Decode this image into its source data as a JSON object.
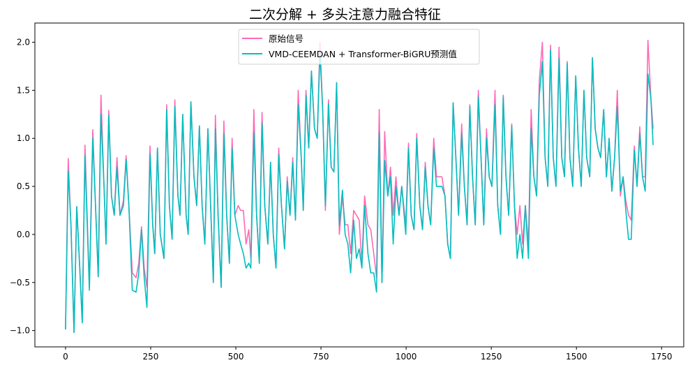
{
  "chart_data": {
    "type": "line",
    "title": "二次分解 + 多头注意力融合特征",
    "xlabel": "",
    "ylabel": "",
    "xlim": [
      -90,
      1815
    ],
    "ylim": [
      -1.17,
      2.2
    ],
    "xticks": [
      0,
      250,
      500,
      750,
      1000,
      1250,
      1500,
      1750
    ],
    "yticks": [
      -1.0,
      -0.5,
      0.0,
      0.5,
      1.0,
      1.5,
      2.0
    ],
    "xtick_labels": [
      "0",
      "250",
      "500",
      "750",
      "1000",
      "1250",
      "1500",
      "1750"
    ],
    "ytick_labels": [
      "−1.0",
      "−0.5",
      "0.0",
      "0.5",
      "1.0",
      "1.5",
      "2.0"
    ],
    "grid": false,
    "legend_position": "top-center",
    "x": [
      0,
      8,
      16,
      25,
      33,
      41,
      49,
      57,
      70,
      80,
      88,
      96,
      104,
      113,
      119,
      127,
      135,
      143,
      151,
      160,
      170,
      178,
      186,
      196,
      207,
      215,
      223,
      231,
      239,
      248,
      256,
      262,
      270,
      278,
      289,
      297,
      305,
      313,
      321,
      330,
      336,
      344,
      354,
      360,
      368,
      377,
      385,
      393,
      401,
      409,
      418,
      426,
      434,
      440,
      448,
      457,
      465,
      473,
      481,
      489,
      497,
      507,
      514,
      522,
      530,
      538,
      544,
      553,
      561,
      569,
      577,
      585,
      594,
      602,
      610,
      618,
      626,
      634,
      643,
      651,
      659,
      667,
      675,
      683,
      692,
      698,
      706,
      714,
      722,
      731,
      739,
      747,
      755,
      763,
      772,
      780,
      788,
      796,
      804,
      813,
      821,
      829,
      837,
      846,
      854,
      862,
      870,
      878,
      888,
      896,
      905,
      913,
      921,
      929,
      937,
      946,
      954,
      962,
      970,
      979,
      987,
      999,
      1007,
      1015,
      1023,
      1031,
      1040,
      1048,
      1056,
      1064,
      1072,
      1081,
      1089,
      1097,
      1105,
      1114,
      1122,
      1130,
      1138,
      1146,
      1154,
      1163,
      1171,
      1179,
      1187,
      1195,
      1203,
      1212,
      1220,
      1228,
      1236,
      1244,
      1252,
      1261,
      1269,
      1277,
      1285,
      1293,
      1301,
      1310,
      1318,
      1326,
      1334,
      1342,
      1350,
      1359,
      1367,
      1375,
      1383,
      1391,
      1400,
      1408,
      1416,
      1424,
      1432,
      1440,
      1449,
      1457,
      1465,
      1473,
      1481,
      1489,
      1498,
      1506,
      1514,
      1522,
      1530,
      1539,
      1547,
      1555,
      1563,
      1571,
      1580,
      1588,
      1596,
      1604,
      1612,
      1620,
      1629,
      1637,
      1645,
      1653,
      1661,
      1670,
      1678,
      1686,
      1694,
      1702,
      1710,
      1719,
      1725
    ],
    "series": [
      {
        "name": "原始信号",
        "color": "#ff69b4",
        "values": [
          -0.98,
          0.79,
          0.1,
          -1.02,
          0.29,
          -0.3,
          -0.9,
          0.93,
          -0.55,
          1.09,
          0.3,
          -0.44,
          1.45,
          0.5,
          -0.1,
          1.29,
          0.4,
          0.2,
          0.8,
          0.2,
          0.35,
          0.82,
          0.3,
          -0.4,
          -0.45,
          -0.3,
          0.08,
          -0.35,
          -0.55,
          0.92,
          0.1,
          -0.2,
          0.9,
          0.0,
          -0.25,
          1.35,
          0.3,
          -0.05,
          1.4,
          0.4,
          0.2,
          1.25,
          0.2,
          0.0,
          1.38,
          0.6,
          0.3,
          1.13,
          0.3,
          -0.1,
          1.1,
          0.3,
          -0.5,
          1.24,
          0.2,
          -0.55,
          1.18,
          0.2,
          -0.3,
          1.0,
          0.2,
          0.3,
          0.25,
          0.25,
          -0.1,
          0.05,
          -0.25,
          1.3,
          0.2,
          -0.3,
          1.27,
          0.3,
          -0.1,
          0.75,
          0.0,
          -0.35,
          0.9,
          0.3,
          -0.15,
          0.6,
          0.2,
          0.8,
          0.15,
          1.5,
          0.8,
          0.25,
          1.5,
          0.9,
          1.7,
          1.1,
          1.0,
          2.0,
          1.3,
          0.25,
          1.4,
          0.7,
          0.65,
          1.58,
          0.0,
          0.4,
          0.1,
          0.1,
          -0.2,
          0.25,
          0.2,
          0.15,
          -0.3,
          0.4,
          0.1,
          0.05,
          -0.2,
          -0.45,
          1.3,
          -0.5,
          1.07,
          0.4,
          0.7,
          0.2,
          0.6,
          0.2,
          0.5,
          0.1,
          0.95,
          0.2,
          0.05,
          1.05,
          0.3,
          0.05,
          0.75,
          0.3,
          0.1,
          1.0,
          0.6,
          0.6,
          0.6,
          0.4,
          -0.1,
          -0.25,
          1.37,
          0.8,
          0.2,
          1.15,
          0.5,
          0.1,
          1.35,
          0.6,
          0.1,
          1.5,
          0.8,
          0.1,
          1.1,
          0.6,
          0.5,
          1.5,
          0.3,
          0.0,
          1.45,
          0.6,
          0.2,
          1.15,
          0.3,
          0.0,
          0.3,
          -0.1,
          0.3,
          -0.1,
          1.3,
          0.6,
          0.4,
          1.6,
          2.0,
          0.8,
          0.5,
          1.97,
          0.8,
          0.5,
          1.95,
          0.8,
          0.6,
          1.8,
          0.8,
          0.5,
          1.65,
          0.9,
          0.5,
          1.5,
          0.8,
          0.6,
          1.84,
          1.1,
          0.9,
          0.8,
          1.3,
          0.6,
          1.0,
          0.45,
          0.8,
          1.5,
          0.4,
          0.6,
          0.35,
          0.2,
          0.15,
          0.92,
          0.5,
          1.12,
          0.6,
          0.6,
          2.02,
          1.4,
          1.1
        ]
      },
      {
        "name": "VMD-CEEMDAN + Transformer-BiGRU预测值",
        "color": "#00bfbf",
        "values": [
          -0.99,
          0.66,
          0.1,
          -1.02,
          0.29,
          -0.3,
          -0.92,
          0.82,
          -0.58,
          1.0,
          0.3,
          -0.44,
          1.25,
          0.5,
          -0.1,
          1.24,
          0.4,
          0.2,
          0.7,
          0.2,
          0.3,
          0.78,
          0.3,
          -0.58,
          -0.6,
          -0.4,
          0.05,
          -0.45,
          -0.76,
          0.84,
          0.1,
          -0.2,
          0.9,
          0.0,
          -0.25,
          1.3,
          0.3,
          -0.05,
          1.33,
          0.4,
          0.2,
          1.25,
          0.2,
          0.0,
          1.38,
          0.6,
          0.3,
          1.13,
          0.3,
          -0.1,
          1.1,
          0.3,
          -0.5,
          1.1,
          0.2,
          -0.55,
          1.05,
          0.2,
          -0.3,
          0.9,
          0.2,
          0.0,
          -0.1,
          -0.2,
          -0.35,
          -0.3,
          -0.35,
          1.06,
          0.2,
          -0.3,
          1.16,
          0.3,
          -0.1,
          0.75,
          0.0,
          -0.35,
          0.83,
          0.3,
          -0.15,
          0.55,
          0.2,
          0.75,
          0.15,
          1.35,
          0.8,
          0.25,
          1.45,
          0.9,
          1.7,
          1.1,
          1.0,
          1.9,
          1.3,
          0.3,
          1.36,
          0.7,
          0.65,
          1.58,
          0.1,
          0.46,
          0.0,
          -0.1,
          -0.4,
          0.15,
          -0.25,
          -0.15,
          -0.35,
          0.3,
          -0.2,
          -0.4,
          -0.4,
          -0.6,
          1.06,
          -0.5,
          0.77,
          0.4,
          0.6,
          -0.1,
          0.5,
          0.2,
          0.5,
          0.0,
          0.9,
          0.2,
          0.05,
          1.0,
          0.3,
          0.05,
          0.7,
          0.3,
          0.1,
          0.9,
          0.5,
          0.5,
          0.5,
          0.4,
          -0.1,
          -0.25,
          1.37,
          0.8,
          0.2,
          1.05,
          0.5,
          0.1,
          1.33,
          0.6,
          0.1,
          1.43,
          0.8,
          0.1,
          1.0,
          0.6,
          0.5,
          1.35,
          0.3,
          0.0,
          1.43,
          0.6,
          0.2,
          1.13,
          0.3,
          -0.25,
          0.0,
          -0.25,
          0.3,
          -0.25,
          1.1,
          0.6,
          0.4,
          1.45,
          1.8,
          0.8,
          0.5,
          1.92,
          0.8,
          0.5,
          1.83,
          0.8,
          0.6,
          1.78,
          0.8,
          0.5,
          1.65,
          0.9,
          0.5,
          1.5,
          0.8,
          0.6,
          1.84,
          1.1,
          0.9,
          0.8,
          1.3,
          0.6,
          1.0,
          0.45,
          0.8,
          1.33,
          0.45,
          0.6,
          0.25,
          -0.05,
          -0.05,
          0.88,
          0.5,
          1.05,
          0.6,
          0.45,
          1.67,
          1.4,
          0.93
        ]
      }
    ]
  }
}
